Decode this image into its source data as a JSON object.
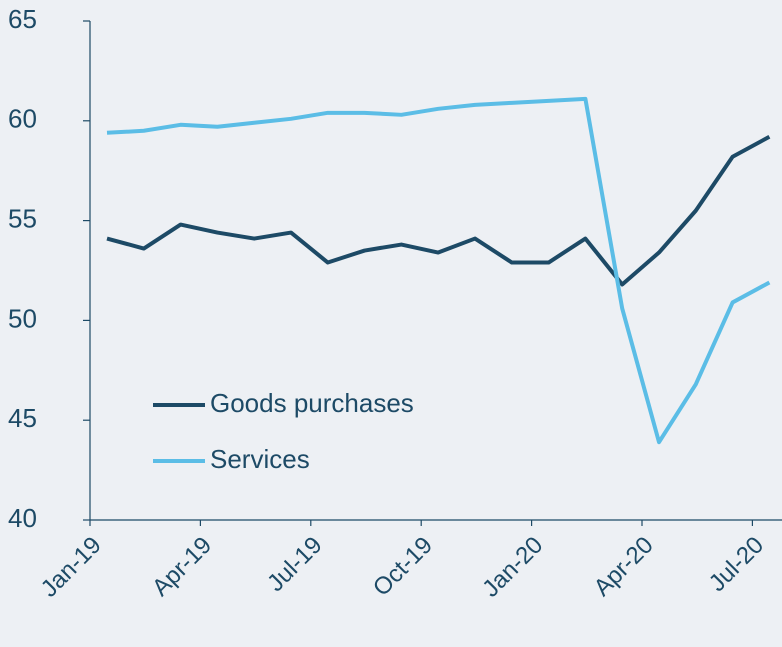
{
  "chart_data": {
    "type": "line",
    "categories": [
      "Jan-19",
      null,
      null,
      "Apr-19",
      null,
      null,
      "Jul-19",
      null,
      null,
      "Oct-19",
      null,
      null,
      "Jan-20",
      null,
      null,
      "Apr-20",
      null,
      null,
      "Jul-20"
    ],
    "series": [
      {
        "name": "Goods purchases",
        "color": "#1d4a66",
        "values": [
          54.1,
          53.6,
          54.8,
          54.4,
          54.1,
          54.4,
          52.9,
          53.5,
          53.8,
          53.4,
          54.1,
          52.9,
          52.9,
          54.1,
          51.8,
          53.4,
          55.5,
          58.2,
          59.2
        ]
      },
      {
        "name": "Services",
        "color": "#5bbde6",
        "values": [
          59.4,
          59.5,
          59.8,
          59.7,
          59.9,
          60.1,
          60.4,
          60.4,
          60.3,
          60.6,
          60.8,
          60.9,
          61.0,
          61.1,
          50.6,
          43.9,
          46.8,
          50.9,
          51.9
        ]
      }
    ],
    "ylim": [
      40,
      65
    ],
    "yticks": [
      40,
      45,
      50,
      55,
      60,
      65
    ],
    "legend": "lower left"
  }
}
